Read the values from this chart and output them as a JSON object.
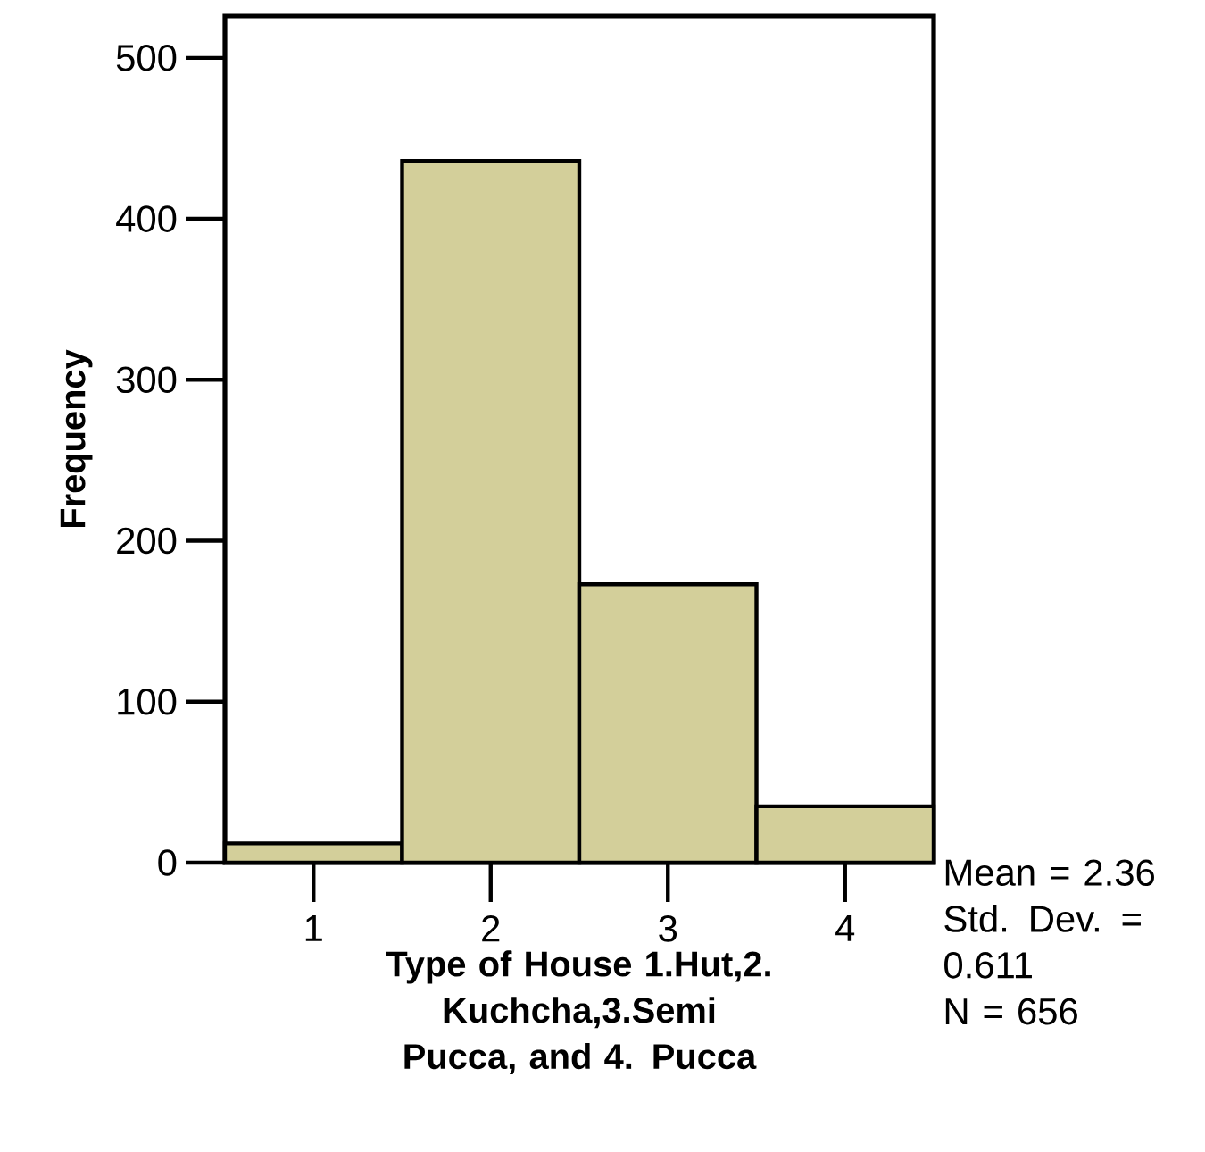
{
  "chart_data": {
    "type": "histogram",
    "xlabel": "Type of House 1.Hut,2. Kuchcha,3.Semi Pucca, and 4. Pucca",
    "ylabel": "Frequency",
    "bins": [
      0.5,
      1.5,
      2.5,
      3.5,
      4.5
    ],
    "values": [
      12,
      436,
      173,
      35
    ],
    "color": "#d3cf9a",
    "xlim": [
      0.5,
      4.5
    ],
    "ylim": [
      0,
      526
    ],
    "xticks": [
      1,
      2,
      3,
      4
    ],
    "yticks": [
      0,
      100,
      200,
      300,
      400,
      500
    ],
    "grid": false,
    "annotations": [
      "Mean = 2.36",
      "Std. Dev. = 0.611",
      "N = 656"
    ]
  }
}
